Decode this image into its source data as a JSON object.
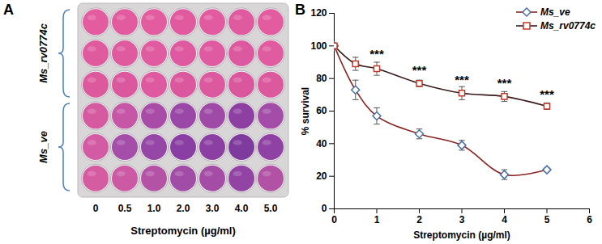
{
  "chart_data": [
    {
      "type": "plate",
      "title": "A",
      "categories": [
        "0",
        "0.5",
        "1.0",
        "2.0",
        "3.0",
        "4.0",
        "5.0"
      ],
      "xlabel": "Streptomycin (µg/ml)",
      "groups": [
        {
          "name": "Ms_rv0774c",
          "wells": [
            [
              "#e35c9f",
              "#e25b9f",
              "#e35ca0",
              "#e15aa0",
              "#e25ba0",
              "#e05a9f",
              "#e35ca0"
            ],
            [
              "#e05a9e",
              "#df5a9f",
              "#e15ba0",
              "#de599f",
              "#df5aa0",
              "#dd599f",
              "#e05b9f"
            ],
            [
              "#dd599d",
              "#dc589e",
              "#de599f",
              "#db589e",
              "#dc589f",
              "#da579e",
              "#dd599e"
            ]
          ]
        },
        {
          "name": "Ms_ve",
          "wells": [
            [
              "#d65aa0",
              "#c656a6",
              "#a94ca8",
              "#9a47a8",
              "#a04aa8",
              "#8e3fa2",
              "#a34ca8"
            ],
            [
              "#d35ba4",
              "#a44ea9",
              "#9546a7",
              "#8a3ea3",
              "#8b3fa3",
              "#7f3a9e",
              "#8f42a4"
            ],
            [
              "#d65ca2",
              "#cc59a4",
              "#b453a6",
              "#a14ca7",
              "#a54da6",
              "#9243a3",
              "#b252a5"
            ]
          ]
        }
      ]
    },
    {
      "type": "line",
      "title": "B",
      "xlabel": "Streptomycin (µg/ml)",
      "ylabel": "% survival",
      "x": [
        0,
        0.5,
        1,
        2,
        3,
        4,
        5
      ],
      "xlim": [
        0,
        6
      ],
      "xticks": [
        0,
        1,
        2,
        3,
        4,
        5,
        6
      ],
      "ylim": [
        0,
        120
      ],
      "yticks": [
        0,
        20,
        40,
        60,
        80,
        100,
        120
      ],
      "legend": "upper right",
      "series": [
        {
          "name": "Ms_ve",
          "color": "#4a6fa5",
          "marker": "diamond",
          "values": [
            100,
            73,
            57,
            46,
            39,
            21,
            24
          ],
          "errors": [
            0,
            6,
            5,
            3,
            3,
            3,
            1
          ]
        },
        {
          "name": "Ms_rv0774c",
          "color": "#c0392b",
          "marker": "square",
          "values": [
            100,
            89,
            86,
            77,
            71,
            69,
            63
          ],
          "errors": [
            0,
            4,
            4,
            2,
            4,
            3,
            2
          ]
        }
      ],
      "annotations": [
        {
          "x": 1,
          "y": 95,
          "text": "***"
        },
        {
          "x": 2,
          "y": 85,
          "text": "***"
        },
        {
          "x": 3,
          "y": 79,
          "text": "***"
        },
        {
          "x": 4,
          "y": 77,
          "text": "***"
        },
        {
          "x": 5,
          "y": 70,
          "text": "***"
        }
      ]
    }
  ]
}
